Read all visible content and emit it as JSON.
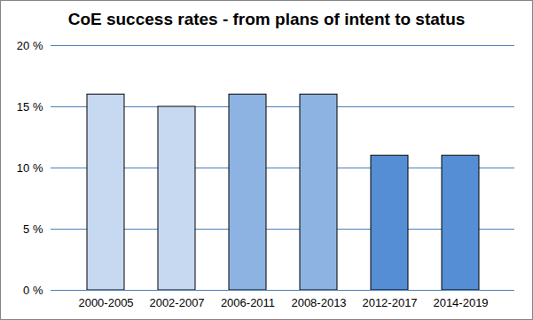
{
  "chart_data": {
    "type": "bar",
    "title": "CoE success rates - from plans of intent to status",
    "categories": [
      "2000-2005",
      "2002-2007",
      "2006-2011",
      "2008-2013",
      "2012-2017",
      "2014-2019"
    ],
    "values": [
      16,
      15,
      16,
      16,
      11,
      11
    ],
    "colors": [
      "#c6d9f1",
      "#c6d9f1",
      "#8db3e2",
      "#8db3e2",
      "#558ed5",
      "#558ed5"
    ],
    "ylim": [
      0,
      20
    ],
    "yticks": [
      {
        "value": 0,
        "label": "0 %"
      },
      {
        "value": 5,
        "label": "5 %"
      },
      {
        "value": 10,
        "label": "10 %"
      },
      {
        "value": 15,
        "label": "15 %"
      },
      {
        "value": 20,
        "label": "20 %"
      }
    ],
    "grid": true
  }
}
